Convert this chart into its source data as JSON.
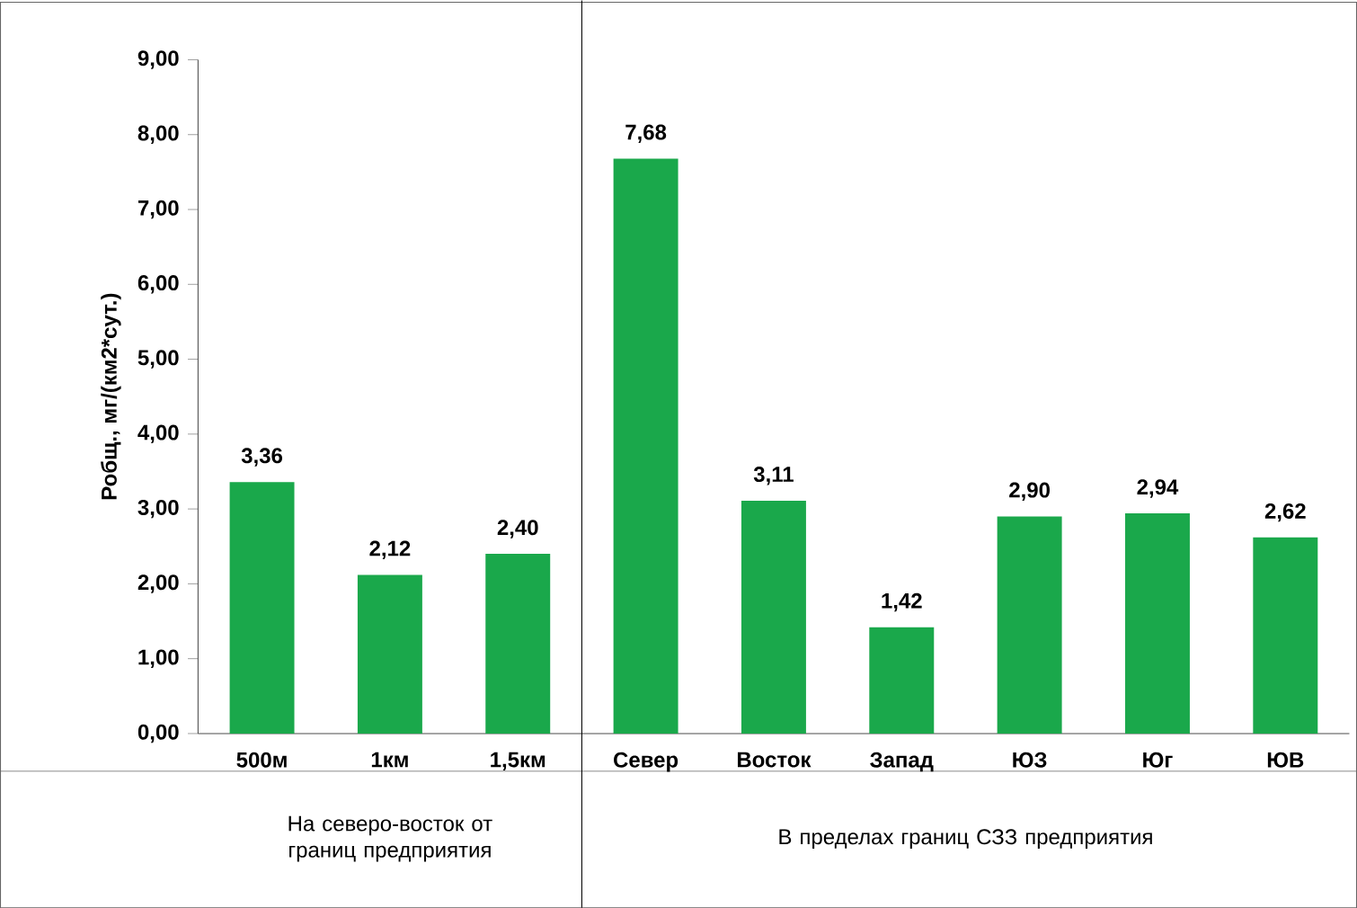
{
  "chart_data": {
    "type": "bar",
    "ylabel": "Робщ., мг/(км2*сут.)",
    "categories": [
      "500м",
      "1км",
      "1,5км",
      "Север",
      "Восток",
      "Запад",
      "ЮЗ",
      "Юг",
      "ЮВ"
    ],
    "values": [
      3.36,
      2.12,
      2.4,
      7.68,
      3.11,
      1.42,
      2.9,
      2.94,
      2.62
    ],
    "value_labels": [
      "3,36",
      "2,12",
      "2,40",
      "7,68",
      "3,11",
      "1,42",
      "2,90",
      "2,94",
      "2,62"
    ],
    "color": "#1aa84b",
    "ylim": [
      0,
      9
    ],
    "yticks": [
      {
        "value": 0,
        "label": "0,00"
      },
      {
        "value": 1,
        "label": "1,00"
      },
      {
        "value": 2,
        "label": "2,00"
      },
      {
        "value": 3,
        "label": "3,00"
      },
      {
        "value": 4,
        "label": "4,00"
      },
      {
        "value": 5,
        "label": "5,00"
      },
      {
        "value": 6,
        "label": "6,00"
      },
      {
        "value": 7,
        "label": "7,00"
      },
      {
        "value": 8,
        "label": "8,00"
      },
      {
        "value": 9,
        "label": "9,00"
      }
    ],
    "annotations": [
      "На северо-восток от границ предприятия",
      "В пределах границ СЗЗ предприятия"
    ]
  }
}
